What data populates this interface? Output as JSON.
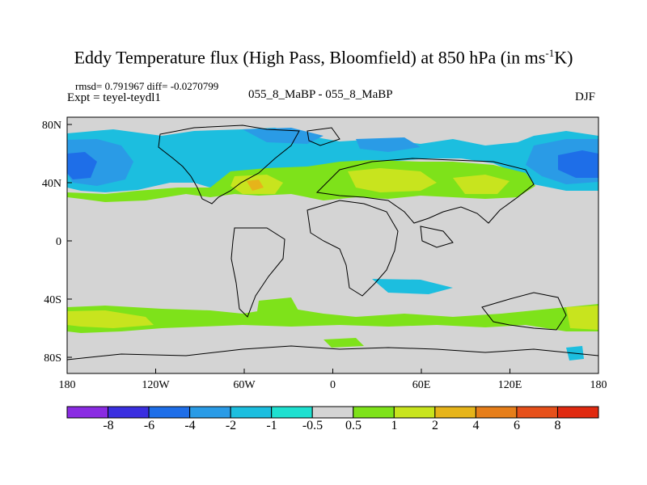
{
  "title": "Eddy Temperature flux (High Pass, Bloomfield) at 850 hPa (in ms",
  "title_exp": "-1",
  "title_end": "K)",
  "rmsd_text": "rmsd= 0.791967 diff= -0.0270799",
  "expt_text": "Expt = teyel-teydl1",
  "center_label": "055_8_MaBP - 055_8_MaBP",
  "season": "DJF",
  "axes": {
    "x_ticks": [
      "180",
      "120W",
      "60W",
      "0",
      "60E",
      "120E",
      "180"
    ],
    "y_ticks": [
      "80N",
      "40N",
      "0",
      "40S",
      "80S"
    ]
  },
  "colorbar": {
    "labels": [
      "-8",
      "-6",
      "-4",
      "-2",
      "-1",
      "-0.5",
      "0.5",
      "1",
      "2",
      "4",
      "6",
      "8"
    ],
    "colors": [
      "#8a2be2",
      "#3a2fe0",
      "#1e6ee8",
      "#2a9be6",
      "#1cbedf",
      "#1ee0d0",
      "#d4d4d4",
      "#7ee21a",
      "#c8e41e",
      "#e6b41a",
      "#e67e1a",
      "#e6501a",
      "#e02a10"
    ]
  },
  "map_colors": {
    "background": "#d4d4d4",
    "neg_strong": "#1e6ee8",
    "neg_mid": "#2a9be6",
    "neg_light": "#1cbedf",
    "neg_weak": "#1ee0d0",
    "pos_weak": "#7ee21a",
    "pos_mid": "#c8e41e",
    "pos_strong": "#e6b41a",
    "coast": "#000000"
  }
}
